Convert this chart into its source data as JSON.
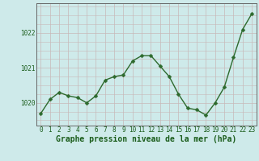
{
  "x": [
    0,
    1,
    2,
    3,
    4,
    5,
    6,
    7,
    8,
    9,
    10,
    11,
    12,
    13,
    14,
    15,
    16,
    17,
    18,
    19,
    20,
    21,
    22,
    23
  ],
  "y": [
    1019.7,
    1020.1,
    1020.3,
    1020.2,
    1020.15,
    1020.0,
    1020.2,
    1020.65,
    1020.75,
    1020.8,
    1021.2,
    1021.35,
    1021.35,
    1021.05,
    1020.75,
    1020.25,
    1019.85,
    1019.8,
    1019.65,
    1020.0,
    1020.45,
    1021.3,
    1022.1,
    1022.55
  ],
  "line_color": "#2d6a2d",
  "marker": "D",
  "marker_size": 2.5,
  "line_width": 1.0,
  "bg_color": "#ceeaea",
  "grid_color": "#c8b8b8",
  "xlabel": "Graphe pression niveau de la mer (hPa)",
  "xlabel_fontsize": 7,
  "xlabel_color": "#1a5c1a",
  "yticks": [
    1020,
    1021,
    1022
  ],
  "xtick_labels": [
    "0",
    "1",
    "2",
    "3",
    "4",
    "5",
    "6",
    "7",
    "8",
    "9",
    "10",
    "11",
    "12",
    "13",
    "14",
    "15",
    "16",
    "17",
    "18",
    "19",
    "20",
    "21",
    "22",
    "23"
  ],
  "tick_fontsize": 5.5,
  "tick_color": "#1a5c1a",
  "ylim": [
    1019.35,
    1022.85
  ],
  "xlim": [
    -0.5,
    23.5
  ],
  "spine_color": "#666666"
}
